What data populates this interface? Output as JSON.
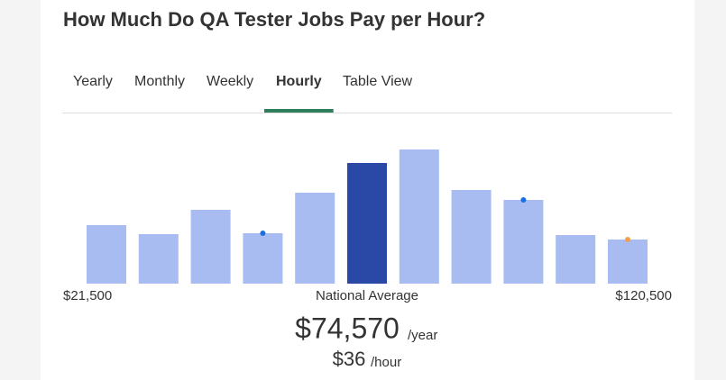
{
  "header": {
    "title": "How Much Do QA Tester Jobs Pay per Hour?"
  },
  "tabs": [
    {
      "label": "Yearly",
      "active": false
    },
    {
      "label": "Monthly",
      "active": false
    },
    {
      "label": "Weekly",
      "active": false
    },
    {
      "label": "Hourly",
      "active": true
    },
    {
      "label": "Table View",
      "active": false
    }
  ],
  "chart_data": {
    "type": "bar",
    "values": [
      65,
      55,
      82,
      56,
      101,
      134,
      149,
      104,
      93,
      54,
      49
    ],
    "colors": [
      "#a9bcf2",
      "#a9bcf2",
      "#a9bcf2",
      "#a9bcf2",
      "#a9bcf2",
      "#2a48a6",
      "#a9bcf2",
      "#a9bcf2",
      "#a9bcf2",
      "#a9bcf2",
      "#a9bcf2"
    ],
    "markers": [
      {
        "bar": 3,
        "color": "#1a6fe0"
      },
      {
        "bar": 8,
        "color": "#1a6fe0"
      },
      {
        "bar": 10,
        "color": "#f0a050"
      }
    ],
    "ylim": [
      0,
      150
    ],
    "min_label": "$21,500",
    "center_label": "National Average",
    "max_label": "$120,500"
  },
  "summary": {
    "yearly": "$74,570",
    "yearly_unit": "/year",
    "hourly": "$36",
    "hourly_unit": "/hour"
  }
}
